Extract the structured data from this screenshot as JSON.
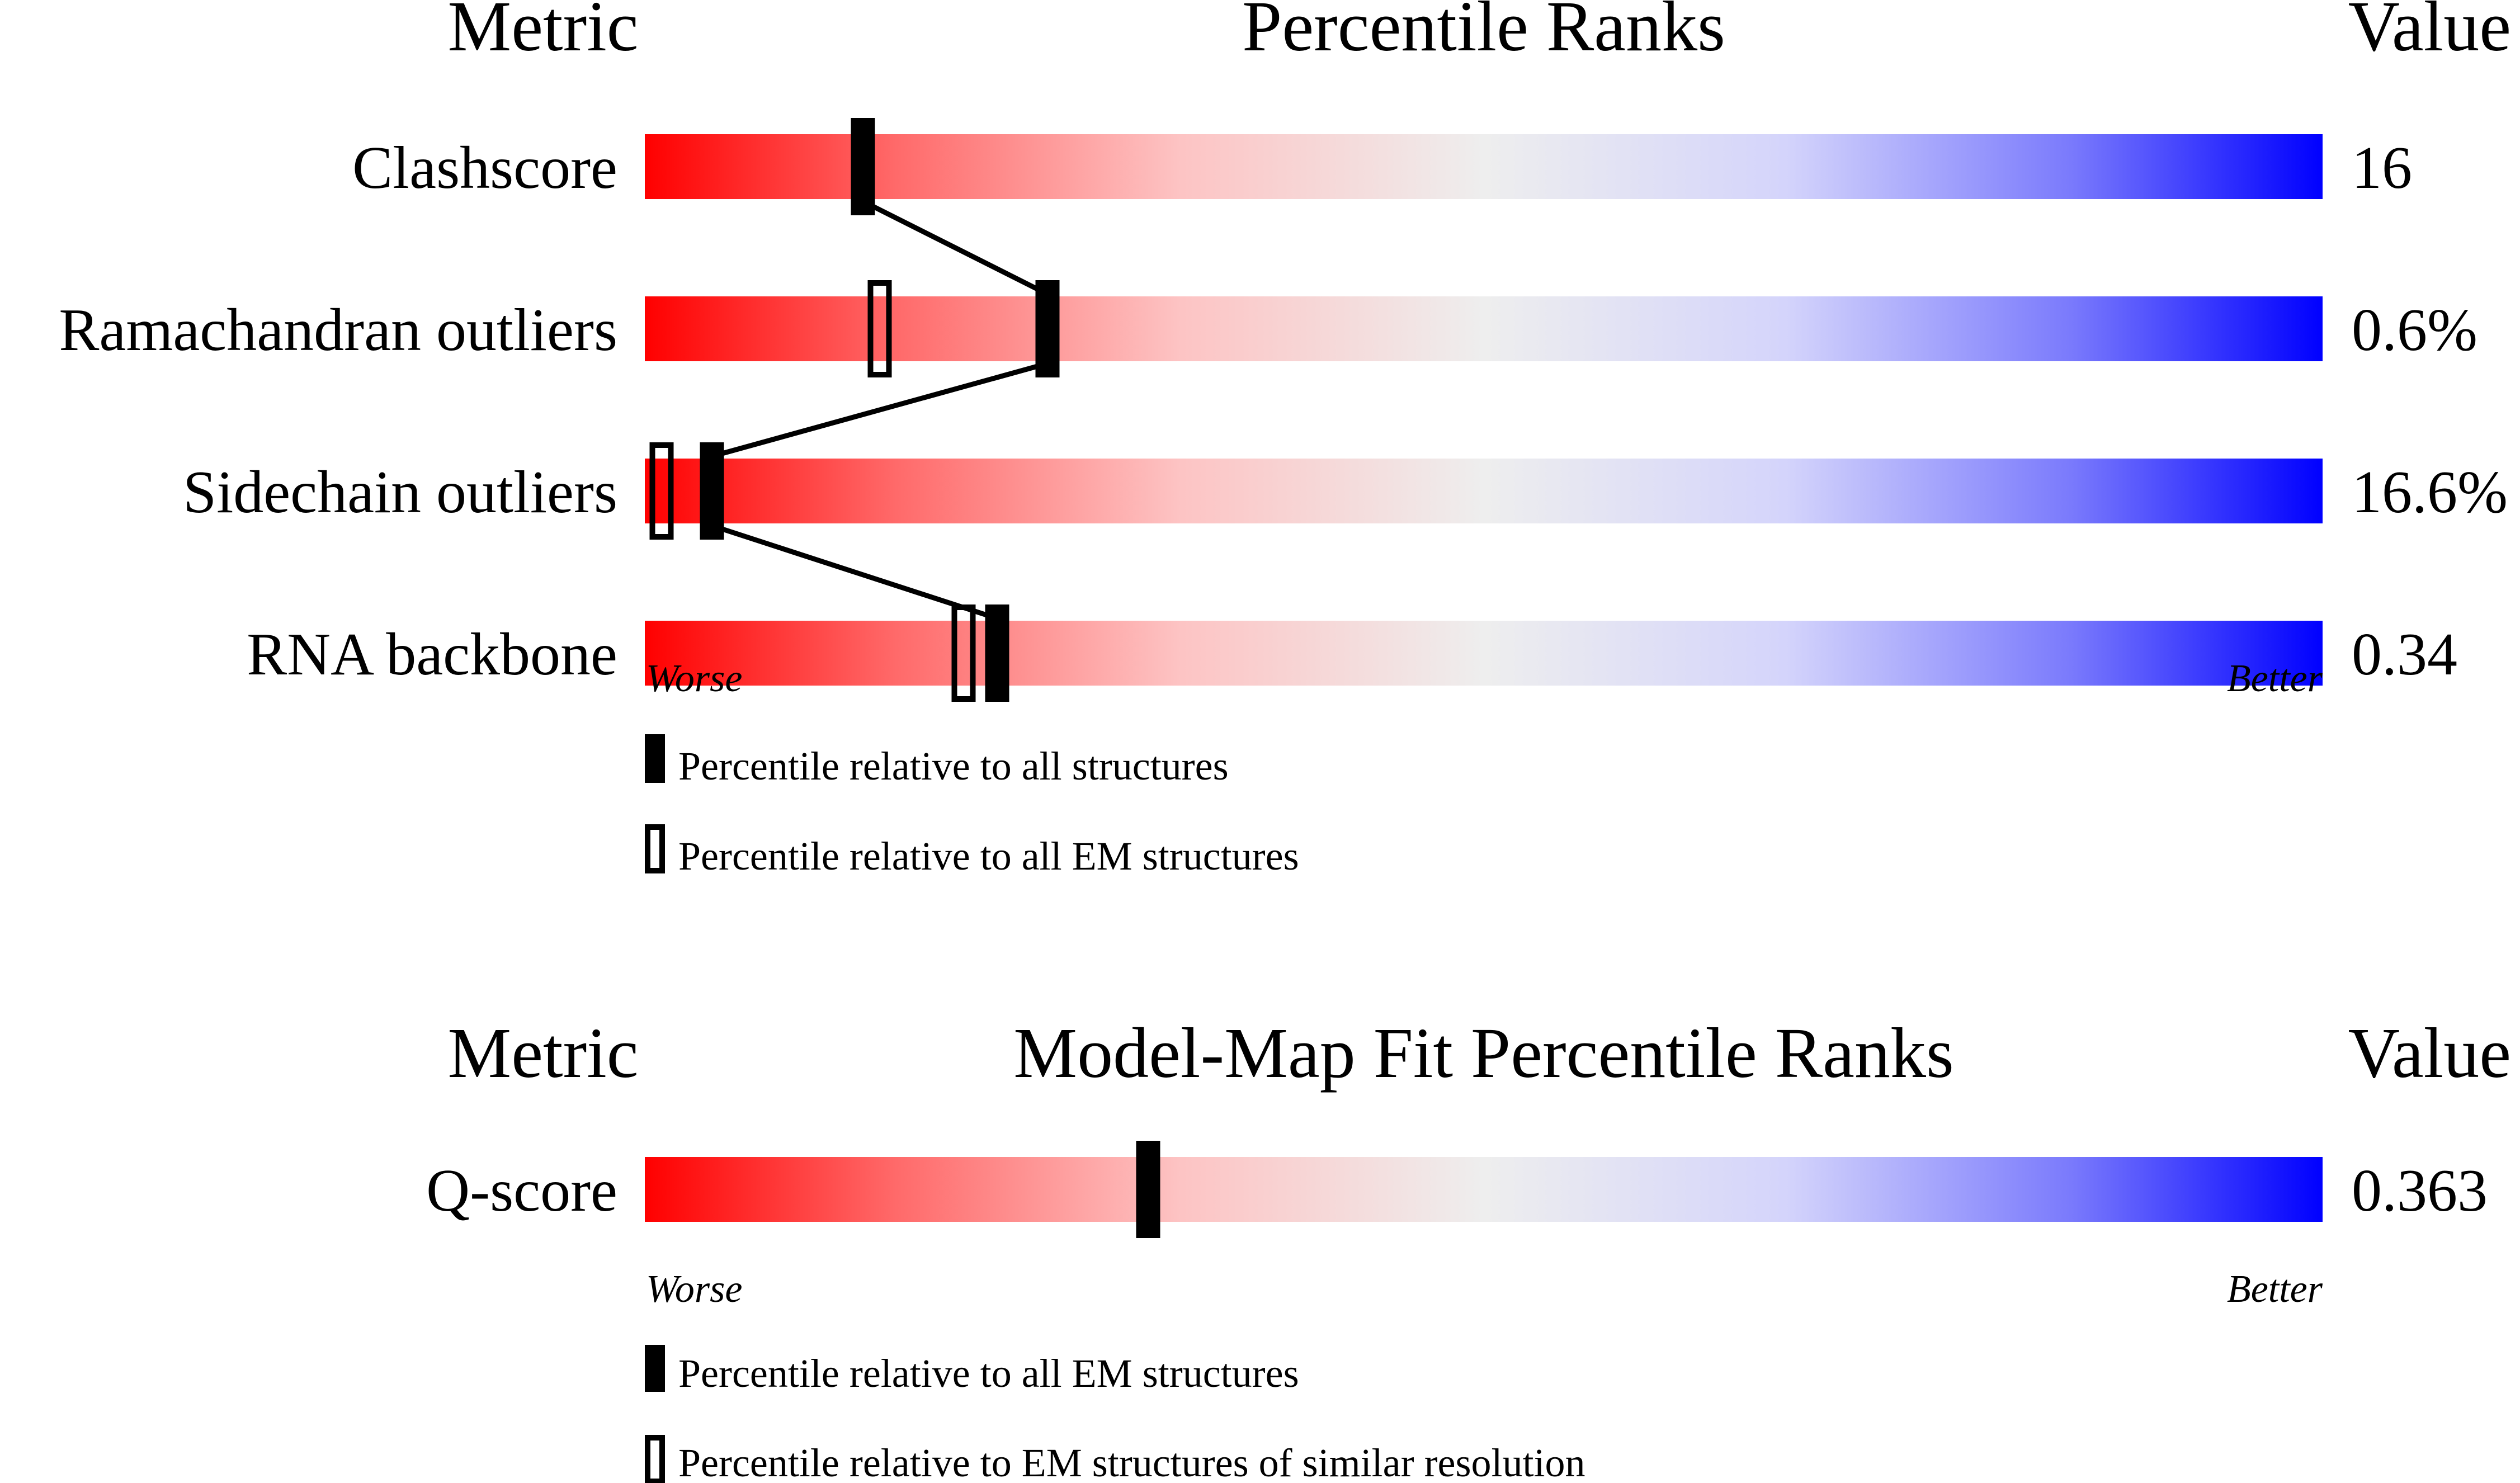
{
  "chart_data": [
    {
      "type": "percentile-bar",
      "title": "Percentile Ranks",
      "header_metric": "Metric",
      "header_value": "Value",
      "xlim": [
        0,
        100
      ],
      "worse_label": "Worse",
      "better_label": "Better",
      "gradient_colors": [
        "#ff0000",
        "#eeeeee",
        "#0000ff"
      ],
      "connect_filled_markers": true,
      "metrics": [
        {
          "name": "Clashscore",
          "value": "16",
          "percentile_all": 13,
          "percentile_em": null
        },
        {
          "name": "Ramachandran outliers",
          "value": "0.6%",
          "percentile_all": 24,
          "percentile_em": 14
        },
        {
          "name": "Sidechain outliers",
          "value": "16.6%",
          "percentile_all": 4,
          "percentile_em": 1
        },
        {
          "name": "RNA backbone",
          "value": "0.34",
          "percentile_all": 21,
          "percentile_em": 19
        }
      ],
      "legend": [
        {
          "marker": "filled",
          "label": "Percentile relative to all structures"
        },
        {
          "marker": "open",
          "label": "Percentile relative to all EM structures"
        }
      ]
    },
    {
      "type": "percentile-bar",
      "title": "Model-Map Fit Percentile Ranks",
      "header_metric": "Metric",
      "header_value": "Value",
      "xlim": [
        0,
        100
      ],
      "worse_label": "Worse",
      "better_label": "Better",
      "gradient_colors": [
        "#ff0000",
        "#eeeeee",
        "#0000ff"
      ],
      "connect_filled_markers": false,
      "metrics": [
        {
          "name": "Q-score",
          "value": "0.363",
          "percentile_all": 30,
          "percentile_em": 30
        }
      ],
      "legend": [
        {
          "marker": "filled",
          "label": "Percentile relative to all EM structures"
        },
        {
          "marker": "open",
          "label": "Percentile relative to EM structures of similar resolution"
        }
      ]
    }
  ]
}
